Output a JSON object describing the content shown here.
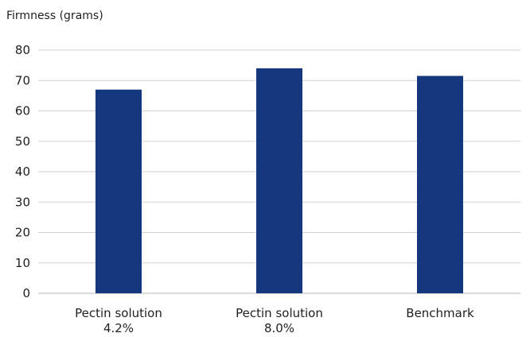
{
  "chart_data": {
    "type": "bar",
    "ylabel": "Firmness (grams)",
    "xlabel": "",
    "categories": [
      [
        "Pectin solution",
        "4.2%"
      ],
      [
        "Pectin solution",
        "8.0%"
      ],
      [
        "Benchmark"
      ]
    ],
    "values": [
      67,
      74,
      71.5
    ],
    "ylim": [
      0,
      80
    ],
    "yticks": [
      0,
      10,
      20,
      30,
      40,
      50,
      60,
      70,
      80
    ],
    "grid": true,
    "legend": "none",
    "bar_color": "#14377d",
    "grid_color": "#d2d2d2"
  }
}
